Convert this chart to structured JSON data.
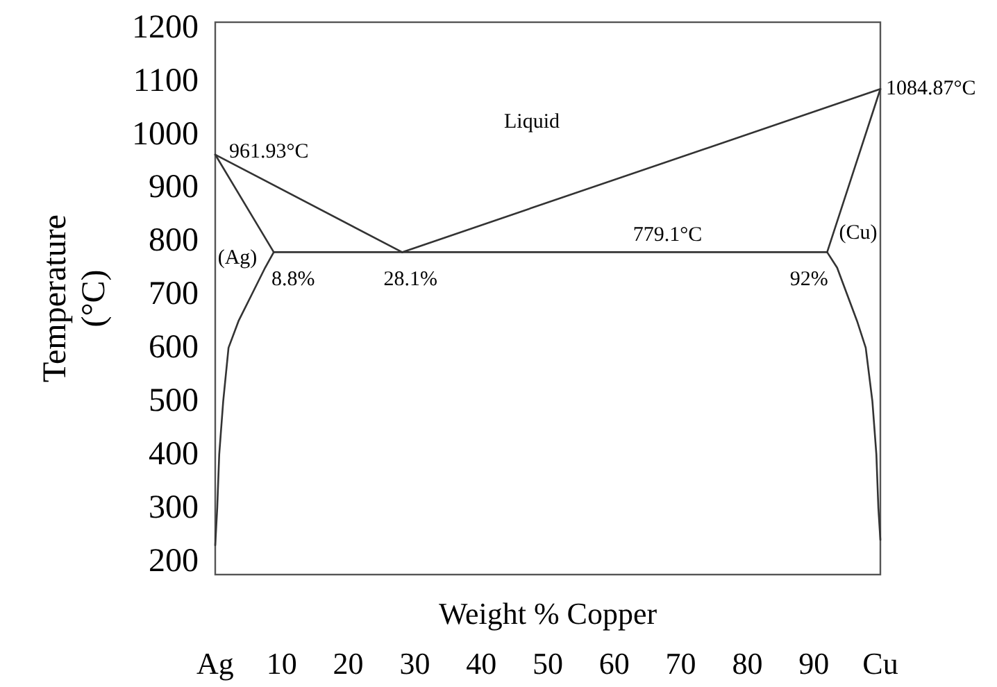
{
  "chart_data": {
    "type": "line",
    "xlabel": "Weight % Copper",
    "ylabel": "Temperature\n(°C)",
    "xlim": [
      0,
      100
    ],
    "ylim": [
      175,
      1210
    ],
    "xticks": [
      {
        "value": 0,
        "label": "Ag"
      },
      10,
      20,
      30,
      40,
      50,
      60,
      70,
      80,
      90,
      {
        "value": 100,
        "label": "Cu"
      }
    ],
    "yticks": [
      200,
      300,
      400,
      500,
      600,
      700,
      800,
      900,
      1000,
      1100,
      1200
    ],
    "grid": false,
    "marker": "none",
    "line_style": "solid",
    "series": [
      {
        "color": "#333333",
        "x": [
          0,
          28.1
        ],
        "values": [
          961.93,
          779.1
        ]
      },
      {
        "color": "#333333",
        "x": [
          28.1,
          100
        ],
        "values": [
          779.1,
          1084.87
        ]
      },
      {
        "color": "#333333",
        "x": [
          0,
          8.8
        ],
        "values": [
          961.93,
          779.1
        ]
      },
      {
        "color": "#333333",
        "x": [
          100,
          92
        ],
        "values": [
          1084.87,
          779.1
        ]
      },
      {
        "color": "#333333",
        "x": [
          8.8,
          92
        ],
        "values": [
          779.1,
          779.1
        ]
      },
      {
        "color": "#333333",
        "x": [
          8.8,
          7.5,
          5.5,
          3.5,
          2,
          1.2,
          0.6,
          0.3,
          0
        ],
        "values": [
          779.1,
          750,
          700,
          650,
          600,
          500,
          400,
          300,
          230
        ]
      },
      {
        "color": "#333333",
        "x": [
          92,
          93.5,
          95,
          96.5,
          97.8,
          98.8,
          99.4,
          99.7,
          100
        ],
        "values": [
          779.1,
          750,
          700,
          650,
          600,
          500,
          400,
          300,
          240
        ]
      }
    ],
    "annotations": [
      {
        "text": "961.93°C",
        "x": 0,
        "y": 961.93
      },
      {
        "text": "1084.87°C",
        "x": 100,
        "y": 1084.87
      },
      {
        "text": "779.1°C",
        "x": 68,
        "y": 779.1
      },
      {
        "text": "8.8%",
        "x": 8.8,
        "y": 779.1
      },
      {
        "text": "28.1%",
        "x": 28.1,
        "y": 779.1
      },
      {
        "text": "92%",
        "x": 92,
        "y": 779.1
      },
      "Liquid",
      "(Ag)",
      "(Cu)"
    ]
  }
}
